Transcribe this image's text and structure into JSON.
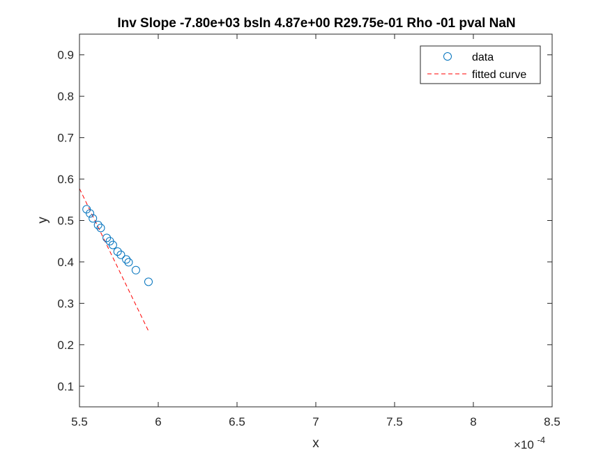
{
  "chart_data": {
    "type": "scatter",
    "title": "Inv Slope -7.80e+03 bsln 4.87e+00 R29.75e-01 Rho -01 pval NaN",
    "xlabel": "x",
    "ylabel": "y",
    "x_exponent_label": "×10",
    "x_exponent_power": "-4",
    "xlim": [
      5.5,
      8.5
    ],
    "ylim": [
      0.05,
      0.95
    ],
    "x_scale_factor": 0.0001,
    "x_ticks": [
      5.5,
      6,
      6.5,
      7,
      7.5,
      8,
      8.5
    ],
    "x_tick_labels": [
      "5.5",
      "6",
      "6.5",
      "7",
      "7.5",
      "8",
      "8.5"
    ],
    "y_ticks": [
      0.1,
      0.2,
      0.3,
      0.4,
      0.5,
      0.6,
      0.7,
      0.8,
      0.9
    ],
    "y_tick_labels": [
      "0.1",
      "0.2",
      "0.3",
      "0.4",
      "0.5",
      "0.6",
      "0.7",
      "0.8",
      "0.9"
    ],
    "grid": false,
    "legend_position": "top-right",
    "series": [
      {
        "name": "data",
        "kind": "scatter",
        "marker": "circle-open",
        "color": "#0072BD",
        "x": [
          5.545,
          5.567,
          5.585,
          5.618,
          5.635,
          5.673,
          5.693,
          5.712,
          5.742,
          5.763,
          5.797,
          5.812,
          5.858,
          5.938
        ],
        "y": [
          0.527,
          0.517,
          0.505,
          0.489,
          0.482,
          0.458,
          0.45,
          0.441,
          0.425,
          0.417,
          0.406,
          0.399,
          0.38,
          0.352
        ]
      },
      {
        "name": "fitted curve",
        "kind": "line",
        "style": "dashed",
        "color": "#FF0000",
        "x": [
          5.5,
          5.938
        ],
        "y": [
          0.577,
          0.233
        ]
      }
    ]
  }
}
